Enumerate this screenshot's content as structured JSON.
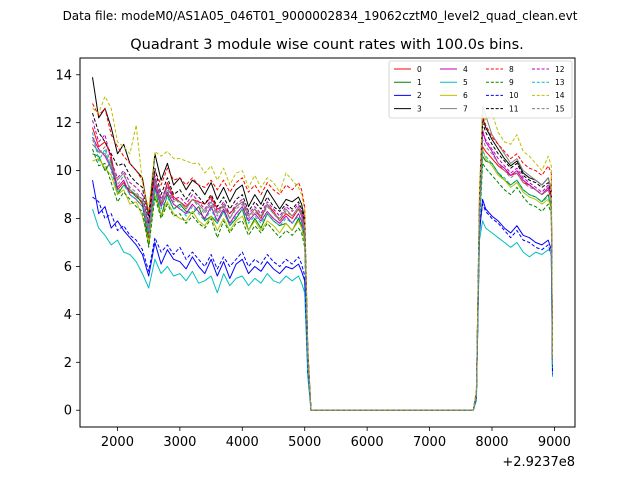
{
  "suptitle": "Data file: modeM0/AS1A05_046T01_9000002834_19062cztM0_level2_quad_clean.evt",
  "chart_data": {
    "type": "line",
    "title": "Quadrant 3 module wise count rates with 100.0s bins.",
    "xlabel": "",
    "ylabel": "",
    "x_offset_label": "+2.9237e8",
    "xlim": [
      1400,
      9330
    ],
    "ylim": [
      -0.7,
      14.7
    ],
    "x_ticks": [
      2000,
      3000,
      4000,
      5000,
      6000,
      7000,
      8000,
      9000
    ],
    "x_tick_labels": [
      "2000",
      "3000",
      "4000",
      "5000",
      "6000",
      "7000",
      "8000",
      "9000"
    ],
    "y_ticks": [
      0,
      2,
      4,
      6,
      8,
      10,
      12,
      14
    ],
    "y_tick_labels": [
      "0",
      "2",
      "4",
      "6",
      "8",
      "10",
      "12",
      "14"
    ],
    "x": [
      1600,
      1700,
      1800,
      1900,
      2000,
      2100,
      2200,
      2300,
      2400,
      2500,
      2600,
      2700,
      2800,
      2900,
      3000,
      3100,
      3200,
      3300,
      3400,
      3500,
      3600,
      3700,
      3800,
      3900,
      4000,
      4100,
      4200,
      4300,
      4400,
      4500,
      4600,
      4700,
      4800,
      4900,
      4950,
      5000,
      5050,
      5100,
      7700,
      7750,
      7800,
      7850,
      7900,
      8000,
      8100,
      8200,
      8300,
      8400,
      8500,
      8600,
      8700,
      8800,
      8900,
      8950,
      8970
    ],
    "series": [
      {
        "name": "0",
        "color": "#ff0000",
        "dash": "solid",
        "values": [
          11.8,
          11.0,
          11.2,
          10.6,
          9.2,
          9.5,
          9.1,
          9.0,
          8.6,
          7.2,
          9.6,
          8.6,
          9.5,
          8.9,
          8.7,
          8.5,
          8.8,
          8.7,
          8.6,
          8.9,
          8.4,
          8.5,
          8.2,
          8.5,
          8.7,
          8.1,
          8.4,
          8.0,
          8.6,
          8.3,
          7.9,
          8.2,
          8.0,
          8.4,
          8.1,
          7.5,
          2.3,
          0.0,
          0.0,
          0.7,
          8.3,
          11.0,
          10.8,
          10.5,
          10.2,
          10.0,
          9.8,
          9.9,
          9.5,
          9.4,
          9.2,
          9.0,
          9.2,
          8.8,
          2.0
        ]
      },
      {
        "name": "1",
        "color": "#008000",
        "dash": "solid",
        "values": [
          10.7,
          10.6,
          10.0,
          10.4,
          9.0,
          9.4,
          9.2,
          8.9,
          8.7,
          6.9,
          9.3,
          8.1,
          9.0,
          8.4,
          8.6,
          8.3,
          8.2,
          8.5,
          7.9,
          8.1,
          7.8,
          8.3,
          7.7,
          8.0,
          8.4,
          7.5,
          8.0,
          7.6,
          8.2,
          7.9,
          7.7,
          7.8,
          7.5,
          8.0,
          7.7,
          7.2,
          2.1,
          0.0,
          0.0,
          0.6,
          7.9,
          10.6,
          10.4,
          10.3,
          9.9,
          9.6,
          9.4,
          9.6,
          9.2,
          9.0,
          8.9,
          8.7,
          9.0,
          8.5,
          1.9
        ]
      },
      {
        "name": "2",
        "color": "#0000ff",
        "dash": "solid",
        "values": [
          9.6,
          8.2,
          8.5,
          7.6,
          7.9,
          7.5,
          7.2,
          6.9,
          6.5,
          5.6,
          7.0,
          6.1,
          6.7,
          6.3,
          6.2,
          5.9,
          6.4,
          6.0,
          5.7,
          6.3,
          5.6,
          6.2,
          5.5,
          6.1,
          6.3,
          5.7,
          6.0,
          5.8,
          6.2,
          5.9,
          5.7,
          6.0,
          5.9,
          6.1,
          5.8,
          5.4,
          1.6,
          0.0,
          0.0,
          0.5,
          7.4,
          8.8,
          8.4,
          8.1,
          7.9,
          7.6,
          7.4,
          7.7,
          7.3,
          7.2,
          7.0,
          6.9,
          7.1,
          6.7,
          1.6
        ]
      },
      {
        "name": "3",
        "color": "#000000",
        "dash": "solid",
        "values": [
          13.9,
          12.2,
          12.6,
          11.8,
          10.7,
          11.1,
          10.3,
          10.0,
          9.7,
          8.1,
          10.7,
          9.6,
          10.3,
          9.4,
          9.7,
          9.2,
          9.6,
          9.4,
          9.0,
          9.5,
          8.8,
          9.3,
          8.7,
          9.2,
          9.4,
          8.5,
          9.0,
          8.6,
          9.2,
          8.8,
          8.4,
          8.8,
          8.7,
          8.9,
          8.6,
          8.0,
          2.5,
          0.0,
          0.0,
          0.7,
          8.8,
          12.2,
          11.8,
          11.3,
          10.9,
          10.5,
          10.2,
          10.4,
          9.9,
          9.7,
          9.6,
          9.4,
          9.7,
          9.2,
          2.1
        ]
      },
      {
        "name": "4",
        "color": "#bf00bf",
        "dash": "solid",
        "values": [
          11.4,
          10.9,
          10.6,
          10.1,
          9.3,
          9.6,
          9.0,
          8.8,
          8.5,
          7.4,
          9.4,
          8.5,
          9.1,
          8.6,
          8.4,
          8.2,
          8.6,
          8.3,
          8.0,
          8.5,
          7.9,
          8.4,
          7.8,
          8.2,
          8.5,
          7.9,
          8.2,
          7.9,
          8.3,
          8.0,
          7.8,
          8.1,
          7.8,
          8.2,
          7.9,
          7.3,
          2.2,
          0.0,
          0.0,
          0.6,
          8.1,
          11.7,
          11.2,
          10.8,
          10.3,
          10.1,
          9.8,
          10.0,
          9.6,
          9.4,
          9.2,
          9.0,
          9.3,
          8.9,
          1.9
        ]
      },
      {
        "name": "5",
        "color": "#00bfbf",
        "dash": "solid",
        "values": [
          8.4,
          7.6,
          7.3,
          6.9,
          7.1,
          6.6,
          6.5,
          6.2,
          5.7,
          5.1,
          6.3,
          5.7,
          6.0,
          5.6,
          5.7,
          5.4,
          5.8,
          5.3,
          5.4,
          5.6,
          4.9,
          5.7,
          5.2,
          5.5,
          5.6,
          5.2,
          5.5,
          5.3,
          5.7,
          5.4,
          5.3,
          5.6,
          5.4,
          5.6,
          5.3,
          4.9,
          1.4,
          0.0,
          0.0,
          0.4,
          7.1,
          7.9,
          7.6,
          7.4,
          7.2,
          7.0,
          6.8,
          7.0,
          6.6,
          6.4,
          6.6,
          6.5,
          6.7,
          6.6,
          1.4
        ]
      },
      {
        "name": "6",
        "color": "#bfbf00",
        "dash": "solid",
        "values": [
          10.4,
          10.5,
          10.1,
          9.8,
          9.0,
          9.2,
          8.6,
          8.7,
          8.1,
          7.0,
          9.0,
          8.1,
          8.7,
          8.2,
          8.0,
          7.9,
          8.3,
          7.9,
          7.7,
          8.1,
          7.5,
          8.0,
          7.5,
          7.9,
          8.1,
          7.5,
          7.9,
          7.5,
          7.9,
          7.7,
          7.4,
          7.8,
          7.5,
          7.9,
          7.6,
          7.0,
          2.1,
          0.0,
          0.0,
          0.6,
          7.9,
          10.9,
          10.5,
          10.2,
          9.8,
          9.6,
          9.3,
          9.5,
          9.1,
          8.9,
          8.8,
          8.6,
          8.8,
          8.4,
          1.9
        ]
      },
      {
        "name": "7",
        "color": "#808080",
        "dash": "solid",
        "values": [
          11.1,
          10.8,
          10.7,
          10.2,
          9.6,
          9.9,
          9.2,
          9.0,
          8.8,
          7.5,
          9.7,
          8.7,
          9.3,
          8.8,
          8.7,
          8.4,
          8.8,
          8.6,
          8.3,
          8.7,
          8.2,
          8.6,
          8.0,
          8.5,
          8.7,
          8.1,
          8.4,
          8.1,
          8.6,
          8.2,
          8.0,
          8.4,
          8.1,
          8.5,
          8.2,
          7.5,
          2.3,
          0.0,
          0.0,
          0.7,
          8.4,
          12.7,
          12.3,
          11.5,
          11.1,
          10.7,
          10.3,
          10.5,
          10.0,
          9.8,
          9.6,
          9.4,
          9.7,
          9.2,
          2.0
        ]
      },
      {
        "name": "8",
        "color": "#ff0000",
        "dash": "dashed",
        "values": [
          12.8,
          12.3,
          12.6,
          11.5,
          11.0,
          10.6,
          10.3,
          10.0,
          9.6,
          8.2,
          10.0,
          9.4,
          10.1,
          9.6,
          9.7,
          9.4,
          9.7,
          9.4,
          9.3,
          9.6,
          9.2,
          9.6,
          9.1,
          9.5,
          9.7,
          9.1,
          9.4,
          9.0,
          9.5,
          9.2,
          9.0,
          9.4,
          9.2,
          9.5,
          9.2,
          8.5,
          2.6,
          0.0,
          0.0,
          0.8,
          9.1,
          12.3,
          11.9,
          11.4,
          11.1,
          10.8,
          10.5,
          10.7,
          10.3,
          10.1,
          10.0,
          9.8,
          10.2,
          9.9,
          2.3
        ]
      },
      {
        "name": "9",
        "color": "#008000",
        "dash": "dashed",
        "values": [
          10.9,
          10.2,
          10.3,
          9.5,
          8.7,
          9.1,
          8.8,
          8.5,
          8.3,
          6.8,
          8.9,
          8.0,
          8.6,
          8.1,
          8.2,
          7.8,
          8.1,
          7.8,
          7.6,
          8.0,
          7.2,
          7.9,
          7.4,
          7.8,
          7.9,
          7.3,
          7.7,
          7.4,
          7.8,
          7.5,
          7.2,
          7.5,
          7.3,
          7.6,
          7.4,
          6.8,
          2.0,
          0.0,
          0.0,
          0.5,
          7.6,
          10.3,
          10.1,
          9.8,
          9.5,
          9.2,
          9.0,
          9.3,
          8.9,
          8.6,
          8.5,
          8.3,
          8.6,
          8.2,
          1.8
        ]
      },
      {
        "name": "10",
        "color": "#0000ff",
        "dash": "dashed",
        "values": [
          8.9,
          8.7,
          8.0,
          8.2,
          7.5,
          7.7,
          7.3,
          7.1,
          6.7,
          5.8,
          7.2,
          6.6,
          6.9,
          6.5,
          6.8,
          6.3,
          6.6,
          6.3,
          6.0,
          6.5,
          5.9,
          6.4,
          6.0,
          6.3,
          6.6,
          6.0,
          6.3,
          6.1,
          6.5,
          6.2,
          6.0,
          6.3,
          6.1,
          6.4,
          6.1,
          5.6,
          1.7,
          0.0,
          0.0,
          0.5,
          7.6,
          8.6,
          8.3,
          8.0,
          7.8,
          7.5,
          7.2,
          7.5,
          7.1,
          7.0,
          6.8,
          6.7,
          6.9,
          6.5,
          1.5
        ]
      },
      {
        "name": "11",
        "color": "#000000",
        "dash": "dashed",
        "values": [
          12.4,
          11.6,
          11.2,
          10.7,
          10.2,
          10.3,
          9.8,
          9.5,
          9.3,
          7.8,
          10.1,
          9.0,
          9.7,
          9.0,
          9.2,
          8.8,
          9.2,
          8.9,
          8.6,
          9.0,
          8.5,
          8.9,
          8.4,
          8.8,
          9.0,
          8.3,
          8.7,
          8.4,
          8.9,
          8.5,
          8.3,
          8.6,
          8.4,
          8.7,
          8.4,
          7.8,
          2.4,
          0.0,
          0.0,
          0.7,
          8.6,
          12.0,
          11.6,
          11.1,
          10.7,
          10.4,
          10.1,
          10.3,
          9.8,
          9.6,
          9.5,
          9.3,
          9.5,
          9.0,
          2.1
        ]
      },
      {
        "name": "12",
        "color": "#bf00bf",
        "dash": "dashed",
        "values": [
          12.1,
          11.2,
          11.5,
          10.4,
          9.7,
          10.0,
          9.5,
          9.3,
          9.0,
          7.7,
          9.8,
          8.8,
          9.4,
          8.8,
          8.9,
          8.6,
          9.0,
          8.7,
          8.4,
          8.8,
          8.3,
          8.7,
          8.2,
          8.6,
          8.8,
          8.2,
          8.5,
          8.2,
          8.7,
          8.4,
          8.1,
          8.5,
          8.3,
          8.6,
          8.3,
          7.7,
          2.3,
          0.0,
          0.0,
          0.7,
          8.5,
          11.5,
          11.3,
          10.9,
          10.5,
          10.2,
          9.9,
          10.1,
          9.7,
          9.5,
          9.3,
          9.1,
          9.4,
          9.0,
          2.0
        ]
      },
      {
        "name": "13",
        "color": "#00bfbf",
        "dash": "dashed",
        "values": [
          11.6,
          10.4,
          10.9,
          10.0,
          9.1,
          9.4,
          9.0,
          8.8,
          8.5,
          7.3,
          9.2,
          8.4,
          8.9,
          8.4,
          8.5,
          8.1,
          8.5,
          8.2,
          7.9,
          8.4,
          7.8,
          8.3,
          7.7,
          8.1,
          8.4,
          7.8,
          8.1,
          7.8,
          8.2,
          7.9,
          7.7,
          8.0,
          7.8,
          8.1,
          7.8,
          7.2,
          2.1,
          0.0,
          0.0,
          0.6,
          8.0,
          10.8,
          10.6,
          10.3,
          9.9,
          9.7,
          9.4,
          9.6,
          9.2,
          9.0,
          8.9,
          8.7,
          8.9,
          8.6,
          1.8
        ]
      },
      {
        "name": "14",
        "color": "#bfbf00",
        "dash": "dashed",
        "values": [
          12.6,
          12.4,
          13.1,
          12.6,
          11.2,
          11.0,
          10.7,
          11.9,
          9.5,
          8.4,
          10.8,
          10.6,
          10.8,
          10.5,
          10.5,
          10.4,
          10.3,
          10.3,
          9.9,
          10.2,
          9.6,
          10.1,
          9.4,
          9.9,
          10.0,
          9.3,
          9.8,
          9.3,
          9.7,
          9.5,
          9.1,
          9.9,
          9.6,
          9.3,
          9.0,
          8.3,
          2.5,
          0.0,
          0.0,
          0.8,
          9.2,
          12.5,
          12.1,
          12.4,
          11.6,
          11.2,
          11.1,
          11.5,
          10.8,
          10.6,
          10.3,
          10.0,
          10.6,
          10.2,
          2.3
        ]
      },
      {
        "name": "15",
        "color": "#808080",
        "dash": "dashed",
        "values": [
          11.3,
          10.7,
          11.0,
          10.3,
          9.4,
          9.8,
          9.3,
          9.1,
          8.8,
          7.5,
          9.6,
          8.6,
          9.2,
          8.7,
          8.7,
          8.4,
          8.8,
          8.5,
          8.2,
          8.6,
          8.1,
          8.5,
          8.0,
          8.4,
          8.6,
          8.0,
          8.3,
          8.0,
          8.5,
          8.2,
          7.9,
          8.3,
          8.1,
          8.4,
          8.1,
          7.5,
          2.2,
          0.0,
          0.0,
          0.6,
          8.3,
          11.3,
          11.0,
          10.7,
          10.3,
          10.0,
          9.7,
          9.9,
          9.5,
          9.3,
          9.2,
          9.0,
          9.2,
          8.8,
          1.9
        ]
      }
    ],
    "legend": {
      "position": "top-right",
      "columns": 4
    }
  }
}
